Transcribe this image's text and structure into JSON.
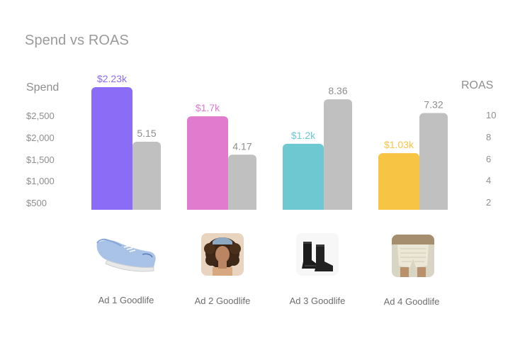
{
  "chart_data": {
    "type": "bar",
    "title": "Spend vs ROAS",
    "categories": [
      "Ad 1 Goodlife",
      "Ad 2 Goodlife",
      "Ad 3 Goodlife",
      "Ad 4 Goodlife"
    ],
    "series": [
      {
        "name": "Spend",
        "values": [
          2230,
          1700,
          1200,
          1030
        ],
        "labels": [
          "$2.23k",
          "$1.7k",
          "$1.2k",
          "$1.03k"
        ],
        "colors": [
          "#8b6cf6",
          "#e07bcd",
          "#6ec8d2",
          "#f8c444"
        ]
      },
      {
        "name": "ROAS",
        "values": [
          5.15,
          4.17,
          8.36,
          7.32
        ],
        "labels": [
          "5.15",
          "4.17",
          "8.36",
          "7.32"
        ],
        "color": "#c0c0c0"
      }
    ],
    "left_axis": {
      "label": "Spend",
      "ticks": [
        "$2,500",
        "$2,000",
        "$1,500",
        "$1,000",
        "$500"
      ],
      "range": [
        0,
        2400
      ]
    },
    "right_axis": {
      "label": "ROAS",
      "ticks": [
        "10",
        "8",
        "6",
        "4",
        "2"
      ],
      "range": [
        0,
        10
      ]
    },
    "grid": false,
    "legend": "none",
    "thumbnails": [
      "sneaker-thumbnail",
      "woman-portrait-thumbnail",
      "wetsuit-boots-thumbnail",
      "crochet-shorts-thumbnail"
    ],
    "label_color": "#8e8e8e",
    "roas_label_color": "#8e8e8e"
  }
}
